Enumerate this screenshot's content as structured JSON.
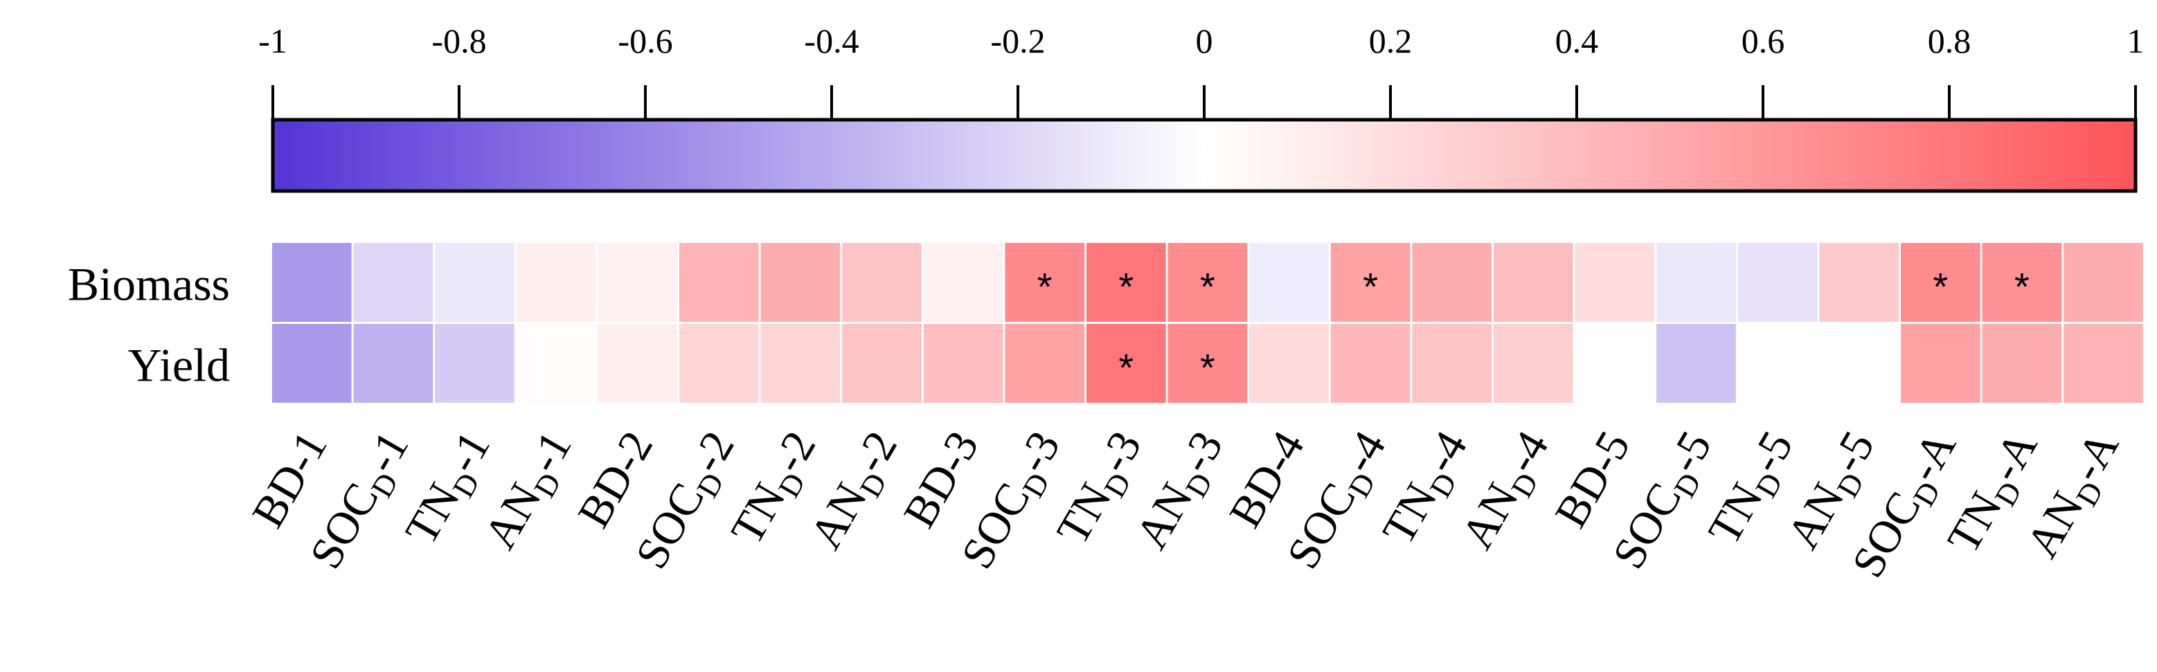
{
  "chart_data": {
    "type": "heatmap",
    "title": "",
    "colorbar": {
      "min": -1,
      "max": 1,
      "ticks": [
        -1,
        -0.8,
        -0.6,
        -0.4,
        -0.2,
        0,
        0.2,
        0.4,
        0.6,
        0.8,
        1
      ],
      "tick_labels": [
        "-1",
        "-0.8",
        "-0.6",
        "-0.4",
        "-0.2",
        "0",
        "0.2",
        "0.4",
        "0.6",
        "0.8",
        "1"
      ],
      "colors": {
        "negative": "#5533d6",
        "zero": "#ffffff",
        "positive": "#fd5559"
      }
    },
    "rows": [
      "Biomass",
      "Yield"
    ],
    "columns": [
      {
        "base": "BD",
        "sub": "",
        "suffix": "-1"
      },
      {
        "base": "SOC",
        "sub": "D",
        "suffix": "-1"
      },
      {
        "base": "TN",
        "sub": "D",
        "suffix": "-1"
      },
      {
        "base": "AN",
        "sub": "D",
        "suffix": "-1"
      },
      {
        "base": "BD",
        "sub": "",
        "suffix": "-2"
      },
      {
        "base": "SOC",
        "sub": "D",
        "suffix": "-2"
      },
      {
        "base": "TN",
        "sub": "D",
        "suffix": "-2"
      },
      {
        "base": "AN",
        "sub": "D",
        "suffix": "-2"
      },
      {
        "base": "BD",
        "sub": "",
        "suffix": "-3"
      },
      {
        "base": "SOC",
        "sub": "D",
        "suffix": "-3"
      },
      {
        "base": "TN",
        "sub": "D",
        "suffix": "-3"
      },
      {
        "base": "AN",
        "sub": "D",
        "suffix": "-3"
      },
      {
        "base": "BD",
        "sub": "",
        "suffix": "-4"
      },
      {
        "base": "SOC",
        "sub": "D",
        "suffix": "-4"
      },
      {
        "base": "TN",
        "sub": "D",
        "suffix": "-4"
      },
      {
        "base": "AN",
        "sub": "D",
        "suffix": "-4"
      },
      {
        "base": "BD",
        "sub": "",
        "suffix": "-5"
      },
      {
        "base": "SOC",
        "sub": "D",
        "suffix": "-5"
      },
      {
        "base": "TN",
        "sub": "D",
        "suffix": "-5"
      },
      {
        "base": "AN",
        "sub": "D",
        "suffix": "-5"
      },
      {
        "base": "SOC",
        "sub": "D",
        "suffix": "-A"
      },
      {
        "base": "TN",
        "sub": "D",
        "suffix": "-A"
      },
      {
        "base": "AN",
        "sub": "D",
        "suffix": "-A"
      }
    ],
    "values": [
      [
        -0.5,
        -0.2,
        -0.12,
        0.1,
        0.08,
        0.45,
        0.48,
        0.35,
        0.08,
        0.7,
        0.8,
        0.68,
        -0.1,
        0.55,
        0.48,
        0.38,
        0.2,
        -0.12,
        -0.15,
        0.32,
        0.68,
        0.65,
        0.48
      ],
      [
        -0.5,
        -0.38,
        -0.25,
        0.02,
        0.1,
        0.25,
        0.25,
        0.35,
        0.38,
        0.55,
        0.8,
        0.7,
        0.22,
        0.42,
        0.35,
        0.28,
        null,
        -0.3,
        null,
        null,
        0.55,
        0.48,
        0.45
      ]
    ],
    "significance": [
      [
        "",
        "",
        "",
        "",
        "",
        "",
        "",
        "",
        "",
        "*",
        "*",
        "*",
        "",
        "*",
        "",
        "",
        "",
        "",
        "",
        "",
        "*",
        "*",
        ""
      ],
      [
        "",
        "",
        "",
        "",
        "",
        "",
        "",
        "",
        "",
        "",
        "*",
        "*",
        "",
        "",
        "",
        "",
        "",
        "",
        "",
        "",
        "",
        "",
        ""
      ]
    ],
    "significance_marker": "*"
  }
}
